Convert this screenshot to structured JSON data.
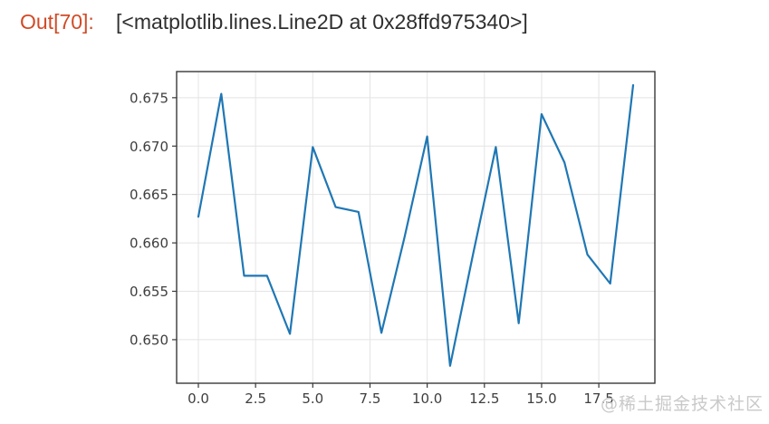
{
  "output_cell": {
    "prompt": "Out[70]:",
    "value": "[<matplotlib.lines.Line2D at 0x28ffd975340>]"
  },
  "watermark": "@稀土掘金技术社区",
  "colors": {
    "background": "#ffffff",
    "prompt": "#d04b27",
    "output_text": "#2f2f2f",
    "line": "#1f77b4",
    "grid": "#e4e4e4",
    "spine": "#383838",
    "tick_label": "#3f3f3f",
    "watermark": "#c9c9c9"
  },
  "chart_data": {
    "type": "line",
    "title": "",
    "xlabel": "",
    "ylabel": "",
    "x": [
      0,
      1,
      2,
      3,
      4,
      5,
      6,
      7,
      8,
      9,
      10,
      11,
      12,
      13,
      14,
      15,
      16,
      17,
      18,
      19
    ],
    "values": [
      0.6627,
      0.6754,
      0.6566,
      0.6566,
      0.6506,
      0.6699,
      0.6637,
      0.6632,
      0.6507,
      0.6605,
      0.671,
      0.6473,
      0.6588,
      0.6699,
      0.6517,
      0.6733,
      0.6683,
      0.6588,
      0.6558,
      0.6763
    ],
    "xticks": [
      0,
      2.5,
      5,
      7.5,
      10,
      12.5,
      15,
      17.5
    ],
    "xtick_labels": [
      "0.0",
      "2.5",
      "5.0",
      "7.5",
      "10.0",
      "12.5",
      "15.0",
      "17.5"
    ],
    "yticks": [
      0.65,
      0.655,
      0.66,
      0.665,
      0.67,
      0.675
    ],
    "ytick_labels": [
      "0.650",
      "0.655",
      "0.660",
      "0.665",
      "0.670",
      "0.675"
    ],
    "xlim": [
      -0.95,
      19.95
    ],
    "ylim": [
      0.6455,
      0.6777
    ],
    "grid": true,
    "legend": false
  }
}
